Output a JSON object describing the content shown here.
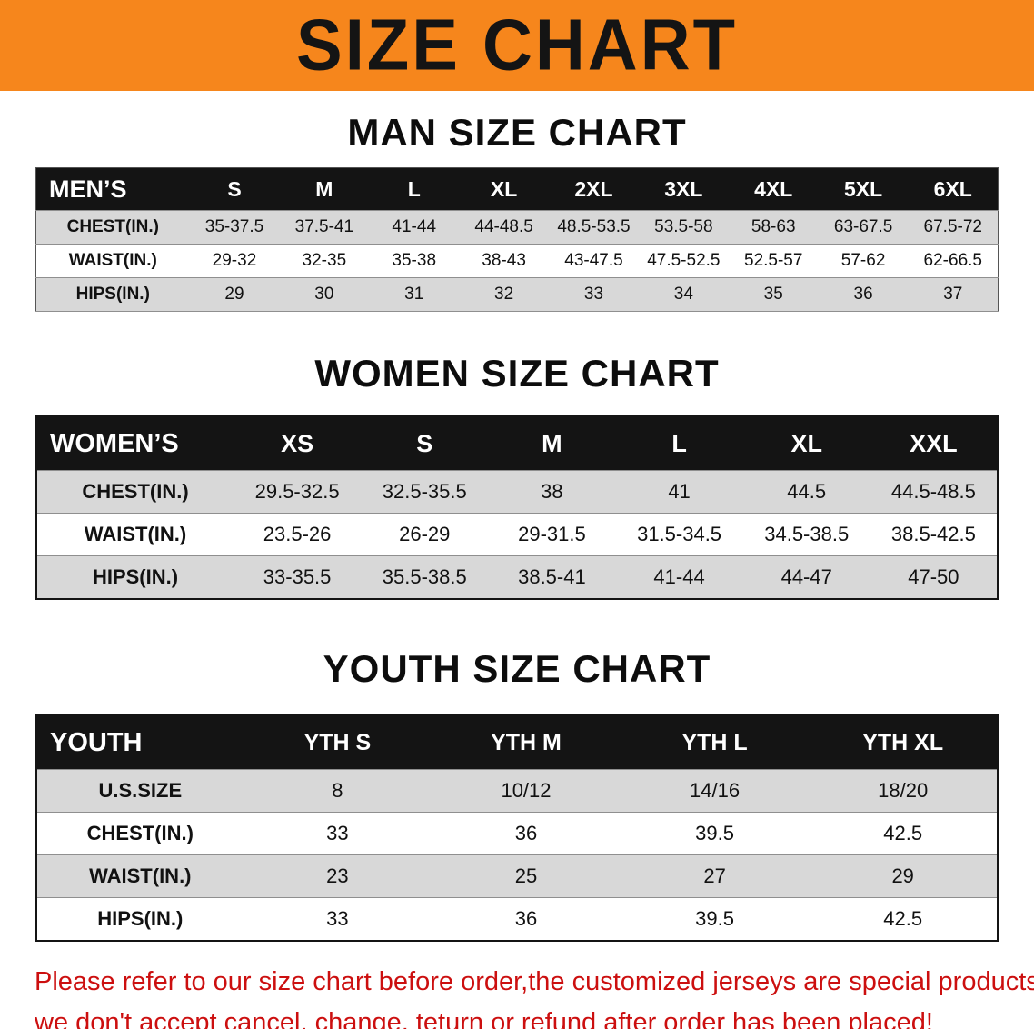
{
  "banner": {
    "title": "SIZE CHART",
    "bg_color": "#f6861c"
  },
  "colors": {
    "header_black": "#141414",
    "stripe_gray": "#d8d8d8",
    "footer_red": "#cc0f0f"
  },
  "sections": [
    {
      "heading": "MAN SIZE CHART",
      "table": {
        "header": [
          "MEN’S",
          "S",
          "M",
          "L",
          "XL",
          "2XL",
          "3XL",
          "4XL",
          "5XL",
          "6XL"
        ],
        "rows": [
          [
            "CHEST(IN.)",
            "35-37.5",
            "37.5-41",
            "41-44",
            "44-48.5",
            "48.5-53.5",
            "53.5-58",
            "58-63",
            "63-67.5",
            "67.5-72"
          ],
          [
            "WAIST(IN.)",
            "29-32",
            "32-35",
            "35-38",
            "38-43",
            "43-47.5",
            "47.5-52.5",
            "52.5-57",
            "57-62",
            "62-66.5"
          ],
          [
            "HIPS(IN.)",
            "29",
            "30",
            "31",
            "32",
            "33",
            "34",
            "35",
            "36",
            "37"
          ]
        ]
      }
    },
    {
      "heading": "WOMEN SIZE CHART",
      "table": {
        "header": [
          "WOMEN’S",
          "XS",
          "S",
          "M",
          "L",
          "XL",
          "XXL"
        ],
        "rows": [
          [
            "CHEST(IN.)",
            "29.5-32.5",
            "32.5-35.5",
            "38",
            "41",
            "44.5",
            "44.5-48.5"
          ],
          [
            "WAIST(IN.)",
            "23.5-26",
            "26-29",
            "29-31.5",
            "31.5-34.5",
            "34.5-38.5",
            "38.5-42.5"
          ],
          [
            "HIPS(IN.)",
            "33-35.5",
            "35.5-38.5",
            "38.5-41",
            "41-44",
            "44-47",
            "47-50"
          ]
        ]
      }
    },
    {
      "heading": "YOUTH SIZE CHART",
      "table": {
        "header": [
          "YOUTH",
          "YTH S",
          "YTH M",
          "YTH L",
          "YTH XL"
        ],
        "rows": [
          [
            "U.S.SIZE",
            "8",
            "10/12",
            "14/16",
            "18/20"
          ],
          [
            "CHEST(IN.)",
            "33",
            "36",
            "39.5",
            "42.5"
          ],
          [
            "WAIST(IN.)",
            "23",
            "25",
            "27",
            "29"
          ],
          [
            "HIPS(IN.)",
            "33",
            "36",
            "39.5",
            "42.5"
          ]
        ]
      }
    }
  ],
  "footer": {
    "lines": [
      "Please refer to our size chart before order,the customized jerseys are special products,",
      "we don't accept cancel, change, teturn or refund after order has been placed!"
    ]
  }
}
